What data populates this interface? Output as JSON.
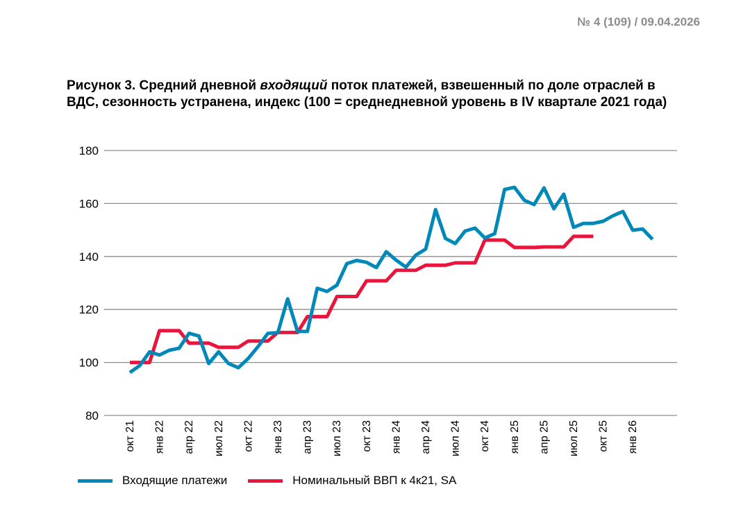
{
  "header": {
    "issue": "№ 4 (109) / 09.04.2026"
  },
  "chart_data": {
    "type": "line",
    "title_parts": [
      "Рисунок 3. Средний дневной ",
      "входящий",
      " поток платежей, взвешенный по доле отраслей в ВДС, сезонность устранена, индекс (100 = среднедневной уровень в IV квартале 2021 года)"
    ],
    "xlabel": "",
    "ylabel": "",
    "ylim": [
      80,
      180
    ],
    "yticks": [
      "80",
      "100",
      "120",
      "140",
      "160",
      "180"
    ],
    "ytick_values": [
      80,
      100,
      120,
      140,
      160,
      180
    ],
    "xtick_labels": [
      "окт 21",
      "янв 22",
      "апр 22",
      "июл 22",
      "окт 22",
      "янв 23",
      "апр 23",
      "июл 23",
      "окт 23",
      "янв 24",
      "апр 24",
      "июл 24",
      "окт 24",
      "янв 25",
      "апр 25",
      "июл 25",
      "окт 25",
      "янв 26"
    ],
    "x_months": "monthly from Oct 2021 to Mar 2026",
    "grid": true,
    "legend_position": "bottom",
    "colors": {
      "incoming": "#0089b8",
      "gdp": "#e8163c",
      "grid": "#8c8c8c"
    },
    "series": [
      {
        "name": "Входящие платежи",
        "values": [
          96.2,
          98.8,
          104,
          102.8,
          104.6,
          105.4,
          111,
          110,
          99.6,
          104,
          99.6,
          98,
          101.5,
          106,
          111,
          111.2,
          124,
          111.7,
          111.7,
          128,
          126.8,
          129.2,
          137.3,
          138.5,
          137.8,
          135.8,
          141.8,
          138.6,
          136,
          140.5,
          142.8,
          157.7,
          146.8,
          144.9,
          149.6,
          150.7,
          147,
          148.6,
          165.3,
          166.1,
          161.2,
          159.6,
          165.9,
          158,
          163.5,
          151,
          152.5,
          152.5,
          153.3,
          155.4,
          157,
          149.9,
          150.4,
          146.5
        ]
      },
      {
        "name": "Номинальный ВВП к 4к21, SA",
        "values": [
          100,
          100,
          100,
          112,
          112,
          112,
          107.3,
          107.3,
          107.3,
          105.7,
          105.7,
          105.7,
          108.1,
          108.1,
          108.1,
          111.3,
          111.3,
          111.3,
          117.3,
          117.3,
          117.3,
          124.9,
          124.9,
          124.9,
          130.8,
          130.8,
          130.8,
          134.8,
          134.8,
          134.8,
          136.7,
          136.7,
          136.7,
          137.6,
          137.6,
          137.6,
          146.2,
          146.2,
          146.2,
          143.4,
          143.4,
          143.4,
          143.6,
          143.6,
          143.6,
          147.6,
          147.6,
          147.6
        ]
      }
    ]
  }
}
